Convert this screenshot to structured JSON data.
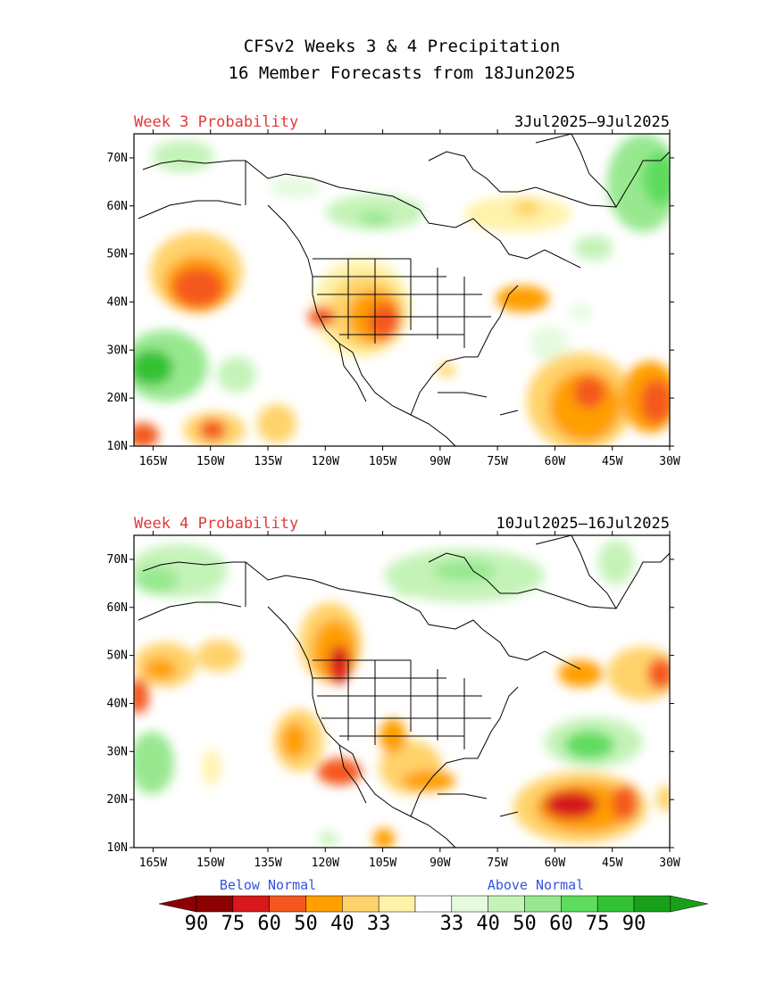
{
  "title": {
    "line1": "CFSv2 Weeks 3 & 4 Precipitation",
    "line2": "16 Member Forecasts from 18Jun2025"
  },
  "panels": [
    {
      "label": "Week 3 Probability",
      "dates": "3Jul2025–9Jul2025"
    },
    {
      "label": "Week 4 Probability",
      "dates": "10Jul2025–16Jul2025"
    }
  ],
  "axes": {
    "lat_labels": [
      "70N",
      "60N",
      "50N",
      "40N",
      "30N",
      "20N",
      "10N"
    ],
    "lon_labels": [
      "165W",
      "150W",
      "135W",
      "120W",
      "105W",
      "90W",
      "75W",
      "60W",
      "45W",
      "30W"
    ],
    "lat_range": [
      10,
      75
    ],
    "lon_range": [
      -170,
      -30
    ]
  },
  "legend": {
    "below_label": "Below Normal",
    "above_label": "Above Normal",
    "numbers": [
      "90",
      "75",
      "60",
      "50",
      "40",
      "33",
      "33",
      "40",
      "50",
      "60",
      "75",
      "90"
    ],
    "colors": {
      "below": [
        "#8b0000",
        "#d7191c",
        "#f4581e",
        "#ff9f00",
        "#ffd36b",
        "#fff2a8"
      ],
      "neutral": "#ffffff",
      "above": [
        "#e5fbe0",
        "#c4f3b8",
        "#98e88f",
        "#5edc5e",
        "#33c233",
        "#19a019"
      ]
    }
  }
}
